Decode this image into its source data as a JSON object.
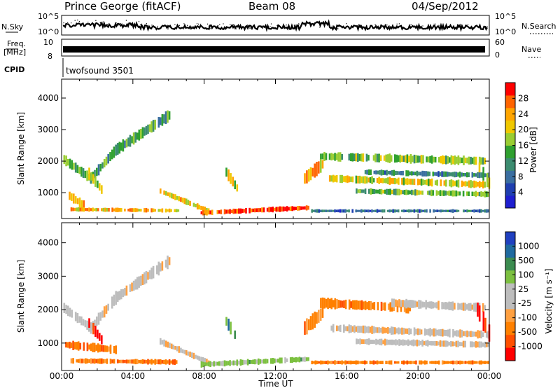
{
  "header": {
    "station": "Prince George (fitACF)",
    "beam": "Beam 08",
    "date": "04/Sep/2012"
  },
  "side_labels": {
    "nsky": "N.Sky",
    "nsky_ticks": [
      "10^5",
      "10^0"
    ],
    "nsearch": "N.Search",
    "nsearch_ticks": [
      "10^5",
      "10^0"
    ],
    "freq": "Freq.",
    "freq_unit": "[MHz]",
    "freq_ticks": [
      "10",
      "8"
    ],
    "nave": "Nave",
    "nave_ticks": [
      "60",
      "0"
    ],
    "cpid": "CPID",
    "cpid_value": "twofsound 3501"
  },
  "colors": {
    "power_scale": [
      "#1f1fd0",
      "#1f3fb0",
      "#3a6ea0",
      "#3c8c70",
      "#2fa02f",
      "#9acd32",
      "#f0c800",
      "#ffa500",
      "#ff6400",
      "#ff0000"
    ],
    "velocity_scale": [
      "#2040c0",
      "#1f6aa0",
      "#3c8c50",
      "#7cc040",
      "#bdbdbd",
      "#bdbdbd",
      "#ffa040",
      "#ff8000",
      "#ff5000",
      "#ff0000"
    ]
  },
  "chart_data": [
    {
      "type": "heatmap",
      "name": "power",
      "xlabel": "",
      "ylabel": "Slant Range [km]",
      "x_ticks": [
        "00:00",
        "04:00",
        "08:00",
        "12:00",
        "16:00",
        "20:00",
        "00:00"
      ],
      "x_tick_hours": [
        0,
        4,
        8,
        12,
        16,
        20,
        24
      ],
      "y_ticks": [
        1000,
        2000,
        3000,
        4000
      ],
      "ylim": [
        180,
        4600
      ],
      "xlim_hours": [
        0,
        24
      ],
      "colorbar_label": "Power [dB]",
      "colorbar_ticks": [
        4,
        8,
        12,
        16,
        20,
        24,
        28
      ],
      "colorbar_range": [
        0,
        32
      ],
      "bands": [
        {
          "t0": 0.1,
          "t1": 1.6,
          "r0": 2050,
          "r1": 1450,
          "w": 260,
          "v": 15
        },
        {
          "t0": 1.6,
          "t1": 3.0,
          "r0": 1450,
          "r1": 2350,
          "w": 280,
          "v": 14
        },
        {
          "t0": 3.0,
          "t1": 6.0,
          "r0": 2350,
          "r1": 3450,
          "w": 320,
          "v": 13
        },
        {
          "t0": 1.5,
          "t1": 2.2,
          "r0": 1600,
          "r1": 1100,
          "w": 300,
          "v": 20
        },
        {
          "t0": 0.4,
          "t1": 1.2,
          "r0": 900,
          "r1": 600,
          "w": 250,
          "v": 24
        },
        {
          "t0": 0.5,
          "t1": 6.5,
          "r0": 470,
          "r1": 430,
          "w": 110,
          "v": 23
        },
        {
          "t0": 5.5,
          "t1": 8.2,
          "r0": 1050,
          "r1": 420,
          "w": 160,
          "v": 21
        },
        {
          "t0": 7.8,
          "t1": 13.8,
          "r0": 360,
          "r1": 520,
          "w": 140,
          "v": 29
        },
        {
          "t0": 9.2,
          "t1": 9.8,
          "r0": 1650,
          "r1": 1150,
          "w": 300,
          "v": 19
        },
        {
          "t0": 13.6,
          "t1": 14.6,
          "r0": 1450,
          "r1": 1900,
          "w": 380,
          "v": 24
        },
        {
          "t0": 14.5,
          "t1": 23.9,
          "r0": 2150,
          "r1": 2000,
          "w": 240,
          "v": 17
        },
        {
          "t0": 15.0,
          "t1": 23.9,
          "r0": 1450,
          "r1": 1250,
          "w": 200,
          "v": 20
        },
        {
          "t0": 16.5,
          "t1": 23.9,
          "r0": 1050,
          "r1": 950,
          "w": 160,
          "v": 15
        },
        {
          "t0": 17.0,
          "t1": 23.9,
          "r0": 1650,
          "r1": 1550,
          "w": 150,
          "v": 11
        },
        {
          "t0": 23.4,
          "t1": 23.95,
          "r0": 1800,
          "r1": 1300,
          "w": 450,
          "v": 19
        },
        {
          "t0": 14.0,
          "t1": 23.9,
          "r0": 420,
          "r1": 420,
          "w": 90,
          "v": 8
        }
      ]
    },
    {
      "type": "heatmap",
      "name": "velocity",
      "xlabel": "Time UT",
      "ylabel": "Slant Range [km]",
      "x_ticks": [
        "00:00",
        "04:00",
        "08:00",
        "12:00",
        "16:00",
        "20:00",
        "00:00"
      ],
      "x_tick_hours": [
        0,
        4,
        8,
        12,
        16,
        20,
        24
      ],
      "y_ticks": [
        1000,
        2000,
        3000,
        4000
      ],
      "ylim": [
        180,
        4600
      ],
      "xlim_hours": [
        0,
        24
      ],
      "colorbar_label": "Velocity [m s⁻¹]",
      "colorbar_ticks": [
        "1000",
        "500",
        "100",
        "25",
        "-25",
        "-100",
        "-500",
        "-1000"
      ],
      "bands": [
        {
          "t0": 0.1,
          "t1": 1.6,
          "r0": 2050,
          "r1": 1450,
          "w": 260,
          "c": 5
        },
        {
          "t0": 1.6,
          "t1": 3.0,
          "r0": 1450,
          "r1": 2350,
          "w": 280,
          "c": 5
        },
        {
          "t0": 3.0,
          "t1": 6.0,
          "r0": 2350,
          "r1": 3450,
          "w": 320,
          "c": 5
        },
        {
          "t0": 1.5,
          "t1": 2.2,
          "r0": 1600,
          "r1": 1100,
          "w": 300,
          "c": 9
        },
        {
          "t0": 0.2,
          "t1": 3.0,
          "r0": 950,
          "r1": 800,
          "w": 220,
          "c": 7
        },
        {
          "t0": 0.5,
          "t1": 6.5,
          "r0": 470,
          "r1": 430,
          "w": 130,
          "c": 7
        },
        {
          "t0": 5.5,
          "t1": 8.2,
          "r0": 1050,
          "r1": 420,
          "w": 160,
          "c": 5
        },
        {
          "t0": 7.8,
          "t1": 13.8,
          "r0": 360,
          "r1": 520,
          "w": 150,
          "c": 3
        },
        {
          "t0": 9.2,
          "t1": 9.8,
          "r0": 1650,
          "r1": 1150,
          "w": 300,
          "c": 2
        },
        {
          "t0": 13.6,
          "t1": 14.6,
          "r0": 1450,
          "r1": 1900,
          "w": 380,
          "c": 7
        },
        {
          "t0": 14.5,
          "t1": 19.5,
          "r0": 2200,
          "r1": 2050,
          "w": 260,
          "c": 7
        },
        {
          "t0": 18.5,
          "t1": 23.9,
          "r0": 2200,
          "r1": 2050,
          "w": 220,
          "c": 5
        },
        {
          "t0": 15.0,
          "t1": 23.9,
          "r0": 1450,
          "r1": 1250,
          "w": 200,
          "c": 5
        },
        {
          "t0": 16.5,
          "t1": 23.9,
          "r0": 1050,
          "r1": 950,
          "w": 160,
          "c": 5
        },
        {
          "t0": 23.3,
          "t1": 23.95,
          "r0": 2000,
          "r1": 1300,
          "w": 500,
          "c": 9
        },
        {
          "t0": 14.0,
          "t1": 23.9,
          "r0": 420,
          "r1": 420,
          "w": 100,
          "c": 7
        }
      ]
    }
  ]
}
